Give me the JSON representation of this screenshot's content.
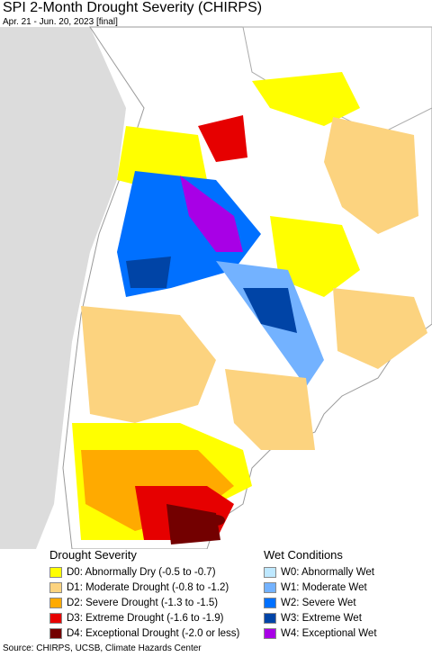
{
  "header": {
    "title": "SPI 2-Month Drought Severity (CHIRPS)",
    "subtitle": "Apr. 21 - Jun. 20, 2023 [final]"
  },
  "legend": {
    "drought": {
      "heading": "Drought Severity",
      "items": [
        {
          "label": "D0: Abnormally Dry (-0.5 to -0.7)",
          "color": "#ffff00"
        },
        {
          "label": "D1: Moderate Drought (-0.8 to -1.2)",
          "color": "#fcd37f"
        },
        {
          "label": "D2: Severe Drought (-1.3 to -1.5)",
          "color": "#ffaa00"
        },
        {
          "label": "D3: Extreme Drought (-1.6 to -1.9)",
          "color": "#e60000"
        },
        {
          "label": "D4: Exceptional Drought (-2.0 or less)",
          "color": "#730000"
        }
      ]
    },
    "wet": {
      "heading": "Wet Conditions",
      "items": [
        {
          "label": "W0: Abnormally Wet",
          "color": "#bee8ff"
        },
        {
          "label": "W1: Moderate Wet",
          "color": "#73b2ff"
        },
        {
          "label": "W2: Severe Wet",
          "color": "#0070ff"
        },
        {
          "label": "W3: Extreme Wet",
          "color": "#0044a6"
        },
        {
          "label": "W4: Exceptional Wet",
          "color": "#a800e6"
        }
      ]
    }
  },
  "source": "Source: CHIRPS, UCSB, Climate Hazards Center"
}
